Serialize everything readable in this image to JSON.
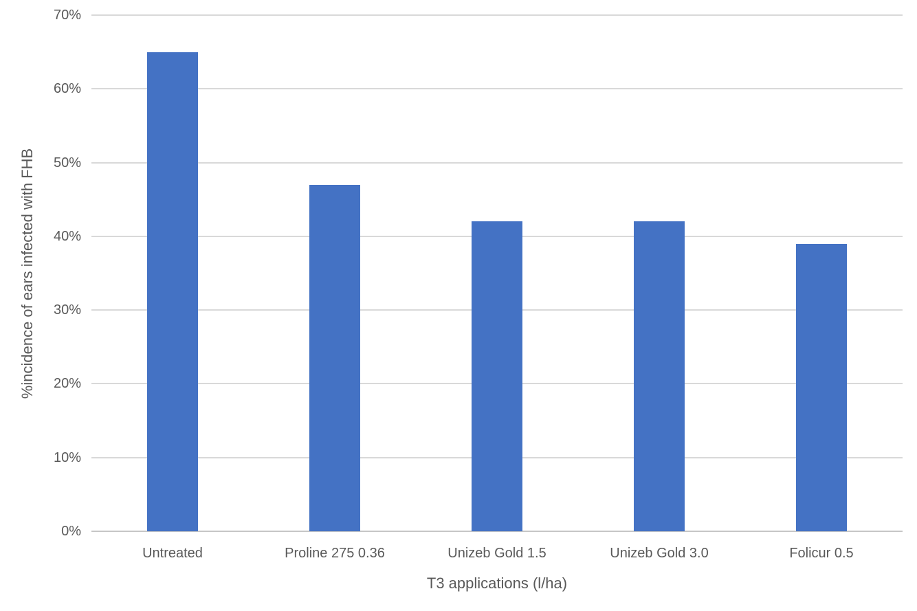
{
  "chart_data": {
    "type": "bar",
    "title": "",
    "categories": [
      "Untreated",
      "Proline 275 0.36",
      "Unizeb Gold 1.5",
      "Unizeb Gold 3.0",
      "Folicur 0.5"
    ],
    "values": [
      65,
      47,
      42,
      42,
      39
    ],
    "xlabel": "T3 applications (l/ha)",
    "ylabel": "%incidence of ears infected with FHB",
    "ylim": [
      0,
      70
    ],
    "ytick_step": 10,
    "ytick_labels": [
      "0%",
      "10%",
      "20%",
      "30%",
      "40%",
      "50%",
      "60%",
      "70%"
    ],
    "grid": true,
    "legend_position": "none",
    "bar_color": "#4472C4",
    "gridline_color": "#D9D9D9",
    "text_color": "#595959",
    "background_color": "#FFFFFF"
  }
}
